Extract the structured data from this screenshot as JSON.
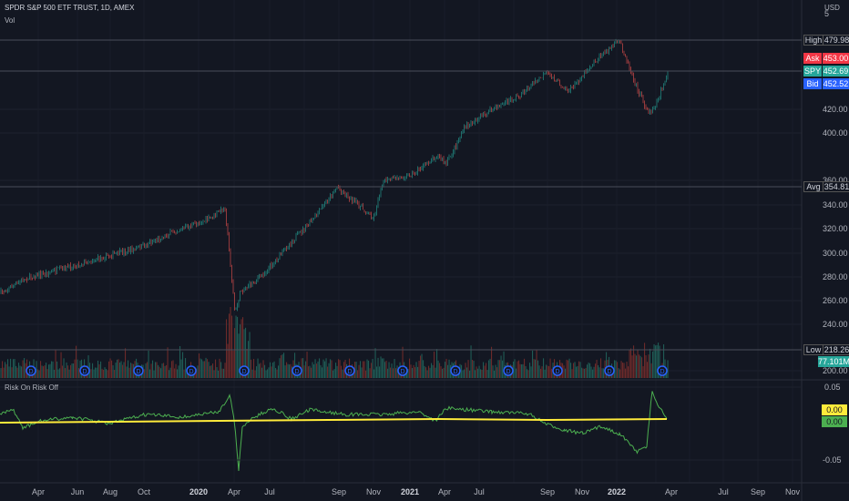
{
  "chart": {
    "title": "SPDR S&P 500 ETF TRUST, 1D, AMEX",
    "volume_label": "Vol",
    "currency": "USD"
  },
  "price_axis": {
    "ticks": [
      "420.00",
      "400.00",
      "360.00",
      "340.00",
      "320.00",
      "300.00",
      "280.00",
      "260.00",
      "240.00",
      "200.00"
    ],
    "top_partial": "5"
  },
  "markers": {
    "high": {
      "name": "High",
      "value": "479.98"
    },
    "ask": {
      "name": "Ask",
      "value": "453.00"
    },
    "spy": {
      "name": "SPY",
      "value": "452.69"
    },
    "bid": {
      "name": "Bid",
      "value": "452.52"
    },
    "avg": {
      "name": "Avg",
      "value": "354.81"
    },
    "low": {
      "name": "Low",
      "value": "218.26"
    },
    "volume": {
      "value": "77.101M"
    }
  },
  "indicator": {
    "title": "Risk On Risk Off",
    "ticks": [
      "0.05",
      "-0.05"
    ],
    "value_yellow": "0.00",
    "value_green": "0.00"
  },
  "date_axis": {
    "labels": [
      {
        "text": "Apr",
        "bold": false
      },
      {
        "text": "Jun",
        "bold": false
      },
      {
        "text": "Aug",
        "bold": false
      },
      {
        "text": "Oct",
        "bold": false
      },
      {
        "text": "2020",
        "bold": true
      },
      {
        "text": "Apr",
        "bold": false
      },
      {
        "text": "Jul",
        "bold": false
      },
      {
        "text": "Sep",
        "bold": false
      },
      {
        "text": "Nov",
        "bold": false
      },
      {
        "text": "2021",
        "bold": true
      },
      {
        "text": "Apr",
        "bold": false
      },
      {
        "text": "Jul",
        "bold": false
      },
      {
        "text": "Sep",
        "bold": false
      },
      {
        "text": "Nov",
        "bold": false
      },
      {
        "text": "2022",
        "bold": true
      },
      {
        "text": "Apr",
        "bold": false
      },
      {
        "text": "Jul",
        "bold": false
      },
      {
        "text": "Sep",
        "bold": false
      },
      {
        "text": "Nov",
        "bold": false
      }
    ]
  },
  "colors": {
    "background": "#131722",
    "up": "#26a69a",
    "down": "#ef5350",
    "indicator_line": "#4caf50",
    "zero_line": "#ffeb3b",
    "ask": "#f23645",
    "spy": "#26a69a",
    "bid": "#2962ff"
  },
  "icons": [
    "dividend-icon"
  ]
}
